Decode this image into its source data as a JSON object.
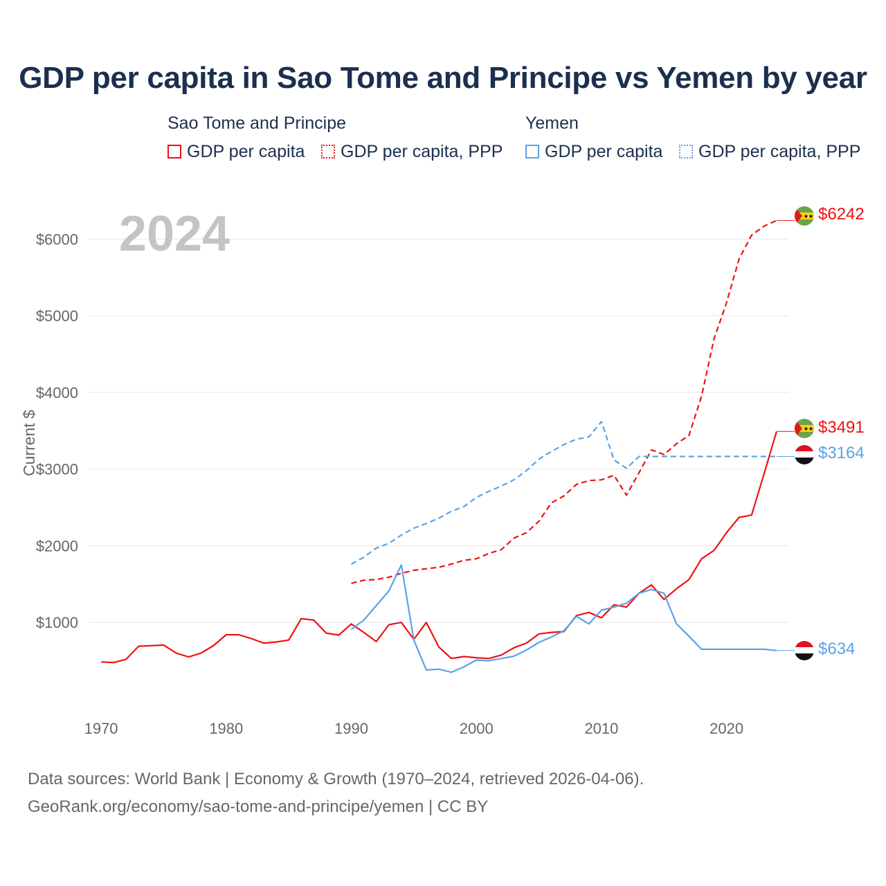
{
  "title": "GDP per capita in Sao Tome and Principe vs Yemen by year",
  "legend": {
    "groups": [
      {
        "name": "Sao Tome and Principe",
        "color": "#ee1111",
        "items": [
          {
            "label": "GDP per capita",
            "style": "solid"
          },
          {
            "label": "GDP per capita, PPP",
            "style": "dotted"
          }
        ]
      },
      {
        "name": "Yemen",
        "color": "#5aa2e6",
        "items": [
          {
            "label": "GDP per capita",
            "style": "solid"
          },
          {
            "label": "GDP per capita, PPP",
            "style": "dotted"
          }
        ]
      }
    ]
  },
  "chart_data": {
    "type": "line",
    "title": "GDP per capita in Sao Tome and Principe vs Yemen by year",
    "xlabel": "",
    "ylabel": "Current $",
    "xlim": [
      1969,
      2025
    ],
    "ylim": [
      0,
      6500
    ],
    "x_ticks": [
      1970,
      1980,
      1990,
      2000,
      2010,
      2020
    ],
    "x_tick_labels": [
      "1970",
      "1980",
      "1990",
      "2000",
      "2010",
      "2020"
    ],
    "y_ticks": [
      1000,
      2000,
      3000,
      4000,
      5000,
      6000
    ],
    "y_tick_labels": [
      "$1000",
      "$2000",
      "$3000",
      "$4000",
      "$5000",
      "$6000"
    ],
    "year_label": "2024",
    "grid": true,
    "series": [
      {
        "name": "Sao Tome and Principe GDP per capita",
        "color": "#ee1111",
        "dash": "solid",
        "x": [
          1970,
          1971,
          1972,
          1973,
          1974,
          1975,
          1976,
          1977,
          1978,
          1979,
          1980,
          1981,
          1982,
          1983,
          1984,
          1985,
          1986,
          1987,
          1988,
          1989,
          1990,
          1991,
          1992,
          1993,
          1994,
          1995,
          1996,
          1997,
          1998,
          1999,
          2000,
          2001,
          2002,
          2003,
          2004,
          2005,
          2006,
          2007,
          2008,
          2009,
          2010,
          2011,
          2012,
          2013,
          2014,
          2015,
          2016,
          2017,
          2018,
          2019,
          2020,
          2021,
          2022,
          2023,
          2024
        ],
        "values": [
          485,
          477,
          520,
          690,
          697,
          705,
          600,
          550,
          600,
          700,
          840,
          840,
          790,
          730,
          745,
          770,
          1050,
          1030,
          860,
          835,
          980,
          870,
          750,
          970,
          1000,
          780,
          1000,
          680,
          530,
          555,
          540,
          530,
          575,
          670,
          730,
          850,
          870,
          880,
          1090,
          1130,
          1060,
          1230,
          1200,
          1380,
          1490,
          1300,
          1440,
          1560,
          1830,
          1940,
          2170,
          2370,
          2400,
          2940,
          3491
        ],
        "end_label": "$3491"
      },
      {
        "name": "Sao Tome and Principe GDP per capita, PPP",
        "color": "#ee1111",
        "dash": "dashed",
        "x": [
          1990,
          1991,
          1992,
          1993,
          1994,
          1995,
          1996,
          1997,
          1998,
          1999,
          2000,
          2001,
          2002,
          2003,
          2004,
          2005,
          2006,
          2007,
          2008,
          2009,
          2010,
          2011,
          2012,
          2013,
          2014,
          2015,
          2016,
          2017,
          2018,
          2019,
          2020,
          2021,
          2022,
          2023,
          2024
        ],
        "values": [
          1510,
          1550,
          1560,
          1590,
          1640,
          1680,
          1700,
          1720,
          1760,
          1810,
          1830,
          1900,
          1950,
          2100,
          2170,
          2320,
          2560,
          2650,
          2800,
          2850,
          2860,
          2920,
          2660,
          2950,
          3250,
          3190,
          3330,
          3440,
          3950,
          4700,
          5170,
          5740,
          6050,
          6170,
          6242
        ],
        "end_label": "$6242"
      },
      {
        "name": "Yemen GDP per capita",
        "color": "#5aa2e6",
        "dash": "solid",
        "x": [
          1990,
          1991,
          1992,
          1993,
          1994,
          1995,
          1996,
          1997,
          1998,
          1999,
          2000,
          2001,
          2002,
          2003,
          2004,
          2005,
          2006,
          2007,
          2008,
          2009,
          2010,
          2011,
          2012,
          2013,
          2014,
          2015,
          2016,
          2017,
          2018,
          2019,
          2020,
          2021,
          2022,
          2023,
          2024
        ],
        "values": [
          910,
          1030,
          1220,
          1410,
          1750,
          770,
          380,
          390,
          350,
          420,
          510,
          500,
          530,
          560,
          640,
          740,
          810,
          890,
          1080,
          980,
          1160,
          1200,
          1250,
          1380,
          1430,
          1380,
          980,
          820,
          650,
          650,
          650,
          650,
          650,
          650,
          634
        ],
        "end_label": "$634"
      },
      {
        "name": "Yemen GDP per capita, PPP",
        "color": "#5aa2e6",
        "dash": "dashed",
        "x": [
          1990,
          1991,
          1992,
          1993,
          1994,
          1995,
          1996,
          1997,
          1998,
          1999,
          2000,
          2001,
          2002,
          2003,
          2004,
          2005,
          2006,
          2007,
          2008,
          2009,
          2010,
          2011,
          2012,
          2013,
          2014,
          2015,
          2016,
          2017,
          2018,
          2019,
          2020,
          2021,
          2022,
          2023,
          2024
        ],
        "values": [
          1760,
          1850,
          1970,
          2030,
          2140,
          2230,
          2290,
          2360,
          2450,
          2510,
          2630,
          2710,
          2780,
          2860,
          2980,
          3130,
          3230,
          3320,
          3390,
          3420,
          3620,
          3120,
          3010,
          3164,
          3164,
          3164,
          3164,
          3164,
          3164,
          3164,
          3164,
          3164,
          3164,
          3164,
          3164
        ],
        "end_label": "$3164"
      }
    ]
  },
  "footer": {
    "line1": "Data sources: World Bank | Economy & Growth (1970–2024, retrieved 2026-04-06).",
    "line2": "GeoRank.org/economy/sao-tome-and-principe/yemen | CC BY"
  }
}
